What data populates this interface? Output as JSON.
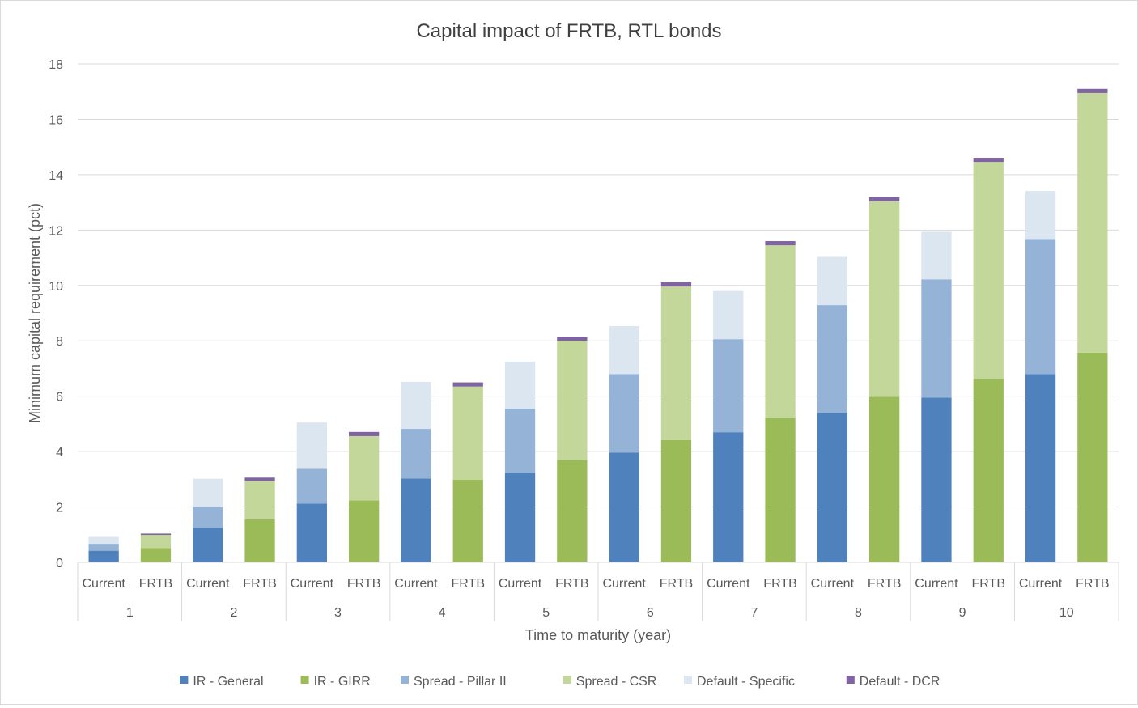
{
  "chart_data": {
    "type": "bar",
    "stacked": true,
    "title": "Capital impact of FRTB, RTL bonds",
    "xlabel": "Time to maturity (year)",
    "ylabel": "Minimum capital requirement (pct)",
    "ylim": [
      0,
      18
    ],
    "yticks": [
      0,
      2,
      4,
      6,
      8,
      10,
      12,
      14,
      16,
      18
    ],
    "grid": true,
    "legend_position": "bottom",
    "groups": [
      "1",
      "2",
      "3",
      "4",
      "5",
      "6",
      "7",
      "8",
      "9",
      "10"
    ],
    "subcategories": [
      "Current",
      "FRTB"
    ],
    "categories": [
      "Current",
      "FRTB",
      "Current",
      "FRTB",
      "Current",
      "FRTB",
      "Current",
      "FRTB",
      "Current",
      "FRTB",
      "Current",
      "FRTB",
      "Current",
      "FRTB",
      "Current",
      "FRTB",
      "Current",
      "FRTB",
      "Current",
      "FRTB"
    ],
    "series": [
      {
        "name": "IR - General",
        "color": "#4f81bd",
        "values": [
          0.42,
          null,
          1.25,
          null,
          2.12,
          null,
          3.03,
          null,
          3.24,
          null,
          3.96,
          null,
          4.7,
          null,
          5.4,
          null,
          5.95,
          null,
          6.8,
          null
        ]
      },
      {
        "name": "IR - GIRR",
        "color": "#9bbb59",
        "values": [
          null,
          0.52,
          null,
          1.55,
          null,
          2.24,
          null,
          2.98,
          null,
          3.7,
          null,
          4.42,
          null,
          5.22,
          null,
          5.98,
          null,
          6.62,
          null,
          7.57
        ]
      },
      {
        "name": "Spread - Pillar II",
        "color": "#95b3d7",
        "values": [
          0.25,
          null,
          0.76,
          null,
          1.26,
          null,
          1.79,
          null,
          2.31,
          null,
          2.84,
          null,
          3.36,
          null,
          3.89,
          null,
          4.27,
          null,
          4.88,
          null
        ]
      },
      {
        "name": "Spread - CSR",
        "color": "#c4d79b",
        "values": [
          null,
          0.47,
          null,
          1.39,
          null,
          2.32,
          null,
          3.37,
          null,
          4.3,
          null,
          5.54,
          null,
          6.23,
          null,
          7.06,
          null,
          7.84,
          null,
          9.38
        ]
      },
      {
        "name": "Default - Specific",
        "color": "#dce6f1",
        "values": [
          0.25,
          null,
          1.01,
          null,
          1.67,
          null,
          1.7,
          null,
          1.7,
          null,
          1.73,
          null,
          1.74,
          null,
          1.74,
          null,
          1.72,
          null,
          1.73,
          null
        ]
      },
      {
        "name": "Default - DCR",
        "color": "#8064a2",
        "values": [
          null,
          0.05,
          null,
          0.12,
          null,
          0.15,
          null,
          0.15,
          null,
          0.15,
          null,
          0.15,
          null,
          0.15,
          null,
          0.15,
          null,
          0.15,
          null,
          0.15
        ]
      }
    ]
  }
}
